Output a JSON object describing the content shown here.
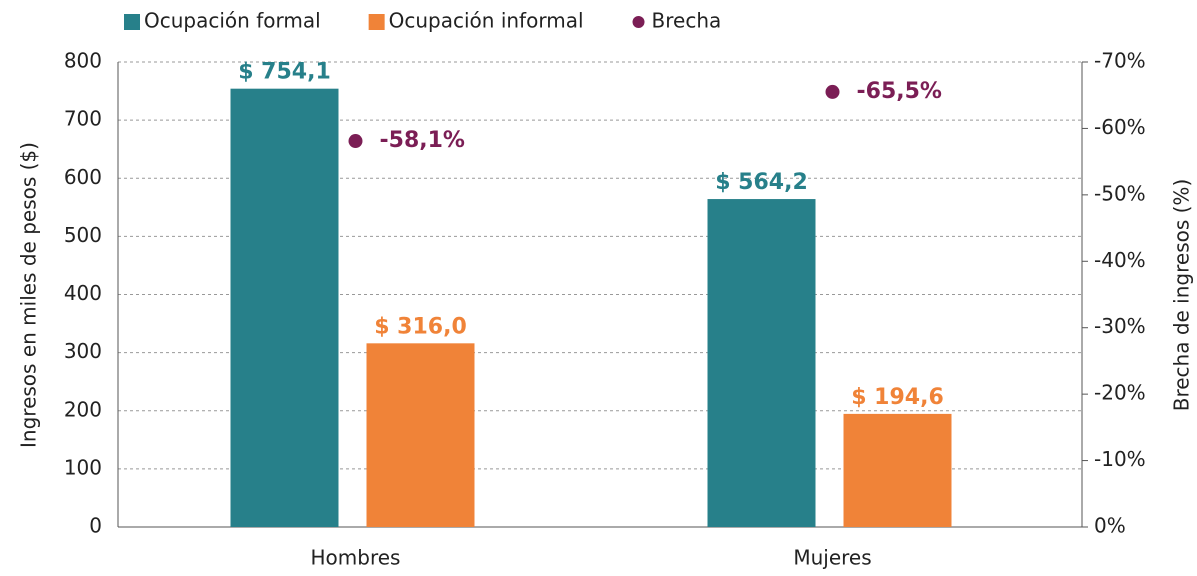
{
  "chart_data": {
    "type": "bar",
    "categories": [
      "Hombres",
      "Mujeres"
    ],
    "series": [
      {
        "name": "Ocupación formal",
        "color": "#27808a",
        "values": [
          754.1,
          564.2
        ],
        "value_labels": [
          "$ 754,1",
          "$ 564,2"
        ]
      },
      {
        "name": "Ocupación informal",
        "color": "#f08338",
        "values": [
          316.0,
          194.6
        ],
        "value_labels": [
          "$ 316,0",
          "$ 194,6"
        ]
      },
      {
        "name": "Brecha",
        "type": "scatter",
        "axis": "y2",
        "color": "#7b1e55",
        "values": [
          -58.1,
          -65.5
        ],
        "value_labels": [
          "-58,1%",
          "-65,5%"
        ]
      }
    ],
    "ylabel": "Ingresos en miles de pesos ($)",
    "y2label": "Brecha de ingresos (%)",
    "ylim": [
      0,
      800
    ],
    "yticks": [
      0,
      100,
      200,
      300,
      400,
      500,
      600,
      700,
      800
    ],
    "y2lim": [
      0,
      -70
    ],
    "y2ticks": [
      {
        "value": 0,
        "label": "0%"
      },
      {
        "value": -10,
        "label": "-10%"
      },
      {
        "value": -20,
        "label": "-20%"
      },
      {
        "value": -30,
        "label": "-30%"
      },
      {
        "value": -40,
        "label": "-40%"
      },
      {
        "value": -50,
        "label": "-50%"
      },
      {
        "value": -60,
        "label": "-60%"
      },
      {
        "value": -70,
        "label": "-70%"
      }
    ],
    "grid": true,
    "legend": "top"
  }
}
